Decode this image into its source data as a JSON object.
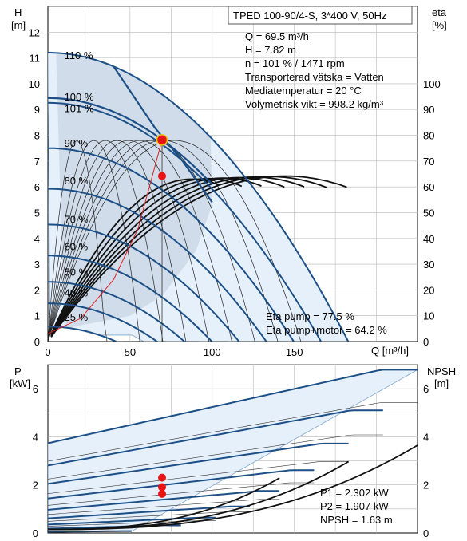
{
  "chart_data": [
    {
      "type": "line",
      "title": "TPED 100-90/4-S, 3*400 V, 50Hz",
      "xlabel": "Q [m³/h]",
      "ylabel_left_title": "H",
      "ylabel_left_unit": "[m]",
      "ylabel_right_title": "eta",
      "ylabel_right_unit": "[%]",
      "xlim": [
        0,
        225
      ],
      "ylim": [
        0,
        13
      ],
      "y2lim": [
        0,
        130
      ],
      "x_ticks": [
        "0",
        "50",
        "100",
        "150"
      ],
      "x_tick_values": [
        0,
        50,
        100,
        150
      ],
      "y_ticks": [
        "0",
        "1",
        "2",
        "3",
        "4",
        "5",
        "6",
        "7",
        "8",
        "9",
        "10",
        "11",
        "12"
      ],
      "y2_ticks": [
        "0",
        "10",
        "20",
        "30",
        "40",
        "50",
        "60",
        "70",
        "80",
        "90",
        "100"
      ],
      "grid": true,
      "info_lines": [
        "Q = 69.5 m³/h",
        "H = 7.82 m",
        "n = 101 % / 1471 rpm",
        "Transporterad vätska = Vatten",
        "Mediatemperatur = 20 °C",
        "Volymetrisk vikt = 998.2 kg/m³"
      ],
      "eta_lines": [
        "Eta pump = 77.5 %",
        "Eta pump+motor = 64.2 %"
      ],
      "speed_labels": [
        "110 %",
        "100 %",
        "101 %",
        "90 %",
        "80 %",
        "70 %",
        "60 %",
        "50 %",
        "40 %",
        "25 %"
      ],
      "speed_label_points": [
        [
          10,
          10.95
        ],
        [
          10,
          9.35
        ],
        [
          10,
          8.9
        ],
        [
          10,
          7.55
        ],
        [
          10,
          6.1
        ],
        [
          10,
          4.6
        ],
        [
          10,
          3.55
        ],
        [
          10,
          2.55
        ],
        [
          10,
          1.75
        ],
        [
          10,
          0.8
        ]
      ],
      "speed_pcts": [
        110,
        100,
        90,
        80,
        70,
        60,
        50,
        40,
        25
      ],
      "pump_curve": {
        "H0": 9.26,
        "k": 0.000335,
        "qmax": 205,
        "actual_pct": 101,
        "color": "#1b4f86"
      },
      "system_curve": {
        "points": [
          [
            0,
            0.3
          ],
          [
            20,
            0.9
          ],
          [
            40,
            2.4
          ],
          [
            55,
            4.4
          ],
          [
            69.5,
            7.82
          ]
        ],
        "color": "#e02020"
      },
      "duty_point": {
        "q": 69.5,
        "h": 7.82,
        "color": "#e61414"
      },
      "eta_point": {
        "q": 69.5,
        "eta": 64.2
      }
    },
    {
      "type": "line",
      "xlim": [
        0,
        225
      ],
      "ylim": [
        0,
        7
      ],
      "y2lim": [
        0,
        7
      ],
      "ylabel_left_title": "P",
      "ylabel_left_unit": "[kW]",
      "ylabel_right_title": "NPSH",
      "ylabel_right_unit": "[m]",
      "y_ticks": [
        "0",
        "2",
        "4",
        "6"
      ],
      "y2_ticks": [
        "0",
        "2",
        "4",
        "6"
      ],
      "grid": true,
      "info_lines": [
        "P1 = 2.302 kW",
        "P2 = 1.907 kW",
        "NPSH = 1.63 m"
      ],
      "duty_points": [
        {
          "q": 69.5,
          "p": 2.302
        },
        {
          "q": 69.5,
          "p": 1.907
        },
        {
          "q": 69.5,
          "p": 1.63
        }
      ],
      "power_max_kw": 5.1,
      "color": "#1b4f86"
    }
  ]
}
